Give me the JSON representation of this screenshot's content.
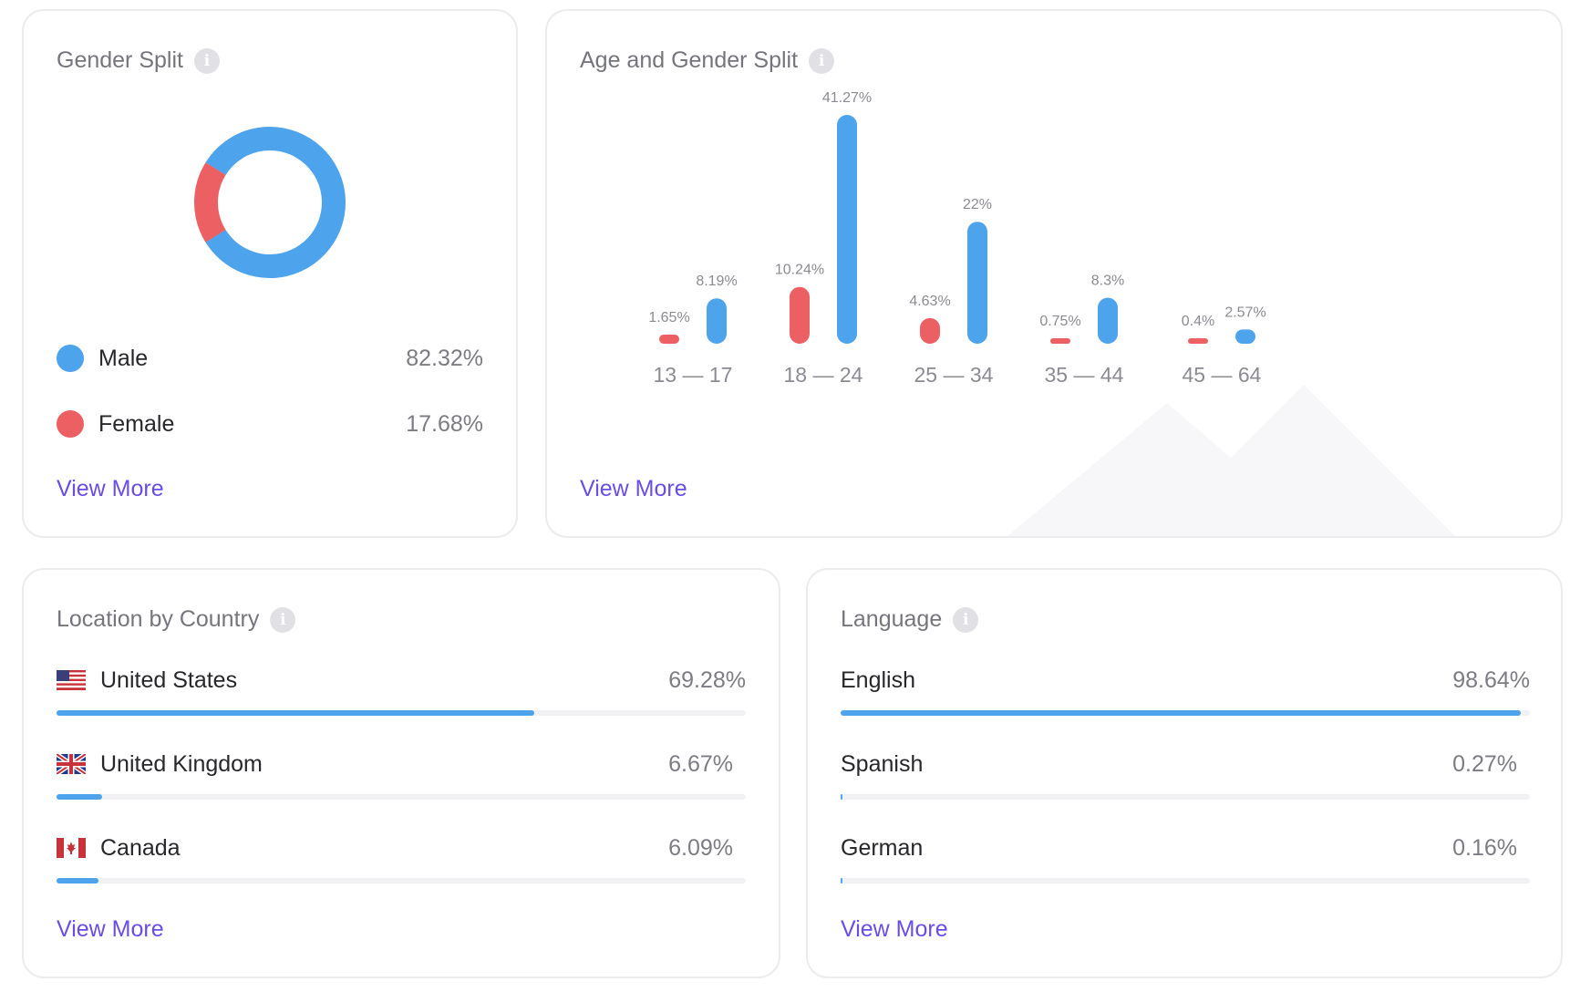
{
  "colors": {
    "male": "#4da3ec",
    "female": "#ec5f63",
    "link": "#6b4ce6"
  },
  "gender_split": {
    "title": "Gender Split",
    "info_icon": "info-icon",
    "items": [
      {
        "label": "Male",
        "value": "82.32%",
        "percent": 82.32
      },
      {
        "label": "Female",
        "value": "17.68%",
        "percent": 17.68
      }
    ],
    "view_more": "View More"
  },
  "age_gender_split": {
    "title": "Age and Gender Split",
    "info_icon": "info-icon",
    "view_more": "View More",
    "chart_data": {
      "type": "bar",
      "categories": [
        "13 — 17",
        "18 — 24",
        "25 — 34",
        "35 — 44",
        "45 — 64"
      ],
      "series": [
        {
          "values": [
            1.65,
            10.24,
            4.63,
            0.75,
            0.4
          ],
          "labels": [
            "1.65%",
            "10.24%",
            "4.63%",
            "0.75%",
            "0.4%"
          ]
        },
        {
          "values": [
            8.19,
            41.27,
            22,
            8.3,
            2.57
          ],
          "labels": [
            "8.19%",
            "41.27%",
            "22%",
            "8.3%",
            "2.57%"
          ]
        }
      ],
      "ylim": [
        0,
        41.27
      ]
    }
  },
  "location": {
    "title": "Location by Country",
    "info_icon": "info-icon",
    "items": [
      {
        "label": "United States",
        "value": "69.28%",
        "percent": 69.28,
        "flag": "us-flag-icon"
      },
      {
        "label": "United Kingdom",
        "value": "6.67%",
        "percent": 6.67,
        "flag": "uk-flag-icon"
      },
      {
        "label": "Canada",
        "value": "6.09%",
        "percent": 6.09,
        "flag": "canada-flag-icon"
      }
    ],
    "view_more": "View More"
  },
  "language": {
    "title": "Language",
    "info_icon": "info-icon",
    "items": [
      {
        "label": "English",
        "value": "98.64%",
        "percent": 98.64
      },
      {
        "label": "Spanish",
        "value": "0.27%",
        "percent": 0.27
      },
      {
        "label": "German",
        "value": "0.16%",
        "percent": 0.16
      }
    ],
    "view_more": "View More"
  }
}
